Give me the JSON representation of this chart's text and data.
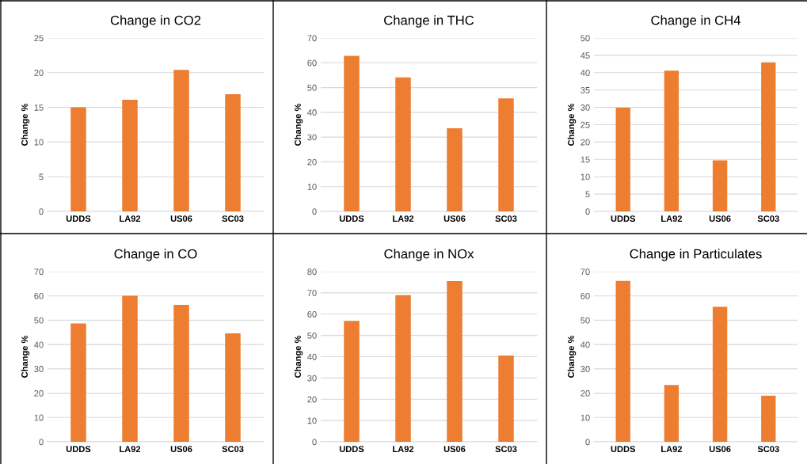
{
  "chart_data": [
    {
      "type": "bar",
      "title": "Change in CO2",
      "ylabel": "Change %",
      "categories": [
        "UDDS",
        "LA92",
        "US06",
        "SC03"
      ],
      "values": [
        15.0,
        16.1,
        20.4,
        16.9
      ],
      "color": "#ed7d31",
      "ylim": [
        0,
        25
      ],
      "yticks": [
        0,
        5,
        10,
        15,
        20,
        25
      ],
      "grid": "y"
    },
    {
      "type": "bar",
      "title": "Change in THC",
      "ylabel": "Change %",
      "categories": [
        "UDDS",
        "LA92",
        "US06",
        "SC03"
      ],
      "values": [
        62.8,
        54.1,
        33.6,
        45.6
      ],
      "color": "#ed7d31",
      "ylim": [
        0,
        70
      ],
      "yticks": [
        0,
        10,
        20,
        30,
        40,
        50,
        60,
        70
      ],
      "grid": "y"
    },
    {
      "type": "bar",
      "title": "Change in CH4",
      "ylabel": "Change %",
      "categories": [
        "UDDS",
        "LA92",
        "US06",
        "SC03"
      ],
      "values": [
        29.9,
        40.6,
        14.7,
        43.0
      ],
      "color": "#ed7d31",
      "ylim": [
        0,
        50
      ],
      "yticks": [
        0,
        5,
        10,
        15,
        20,
        25,
        30,
        35,
        40,
        45,
        50
      ],
      "grid": "y"
    },
    {
      "type": "bar",
      "title": "Change in CO",
      "ylabel": "Change %",
      "categories": [
        "UDDS",
        "LA92",
        "US06",
        "SC03"
      ],
      "values": [
        48.7,
        60.1,
        56.3,
        44.6
      ],
      "color": "#ed7d31",
      "ylim": [
        0,
        70
      ],
      "yticks": [
        0,
        10,
        20,
        30,
        40,
        50,
        60,
        70
      ],
      "grid": "y"
    },
    {
      "type": "bar",
      "title": "Change in NOx",
      "ylabel": "Change %",
      "categories": [
        "UDDS",
        "LA92",
        "US06",
        "SC03"
      ],
      "values": [
        56.8,
        68.9,
        75.5,
        40.6
      ],
      "color": "#ed7d31",
      "ylim": [
        0,
        80
      ],
      "yticks": [
        0,
        10,
        20,
        30,
        40,
        50,
        60,
        70,
        80
      ],
      "grid": "y"
    },
    {
      "type": "bar",
      "title": "Change in Particulates",
      "ylabel": "Change %",
      "categories": [
        "UDDS",
        "LA92",
        "US06",
        "SC03"
      ],
      "values": [
        66.2,
        23.4,
        55.5,
        19.0
      ],
      "color": "#ed7d31",
      "ylim": [
        0,
        70
      ],
      "yticks": [
        0,
        10,
        20,
        30,
        40,
        50,
        60,
        70
      ],
      "grid": "y"
    }
  ]
}
